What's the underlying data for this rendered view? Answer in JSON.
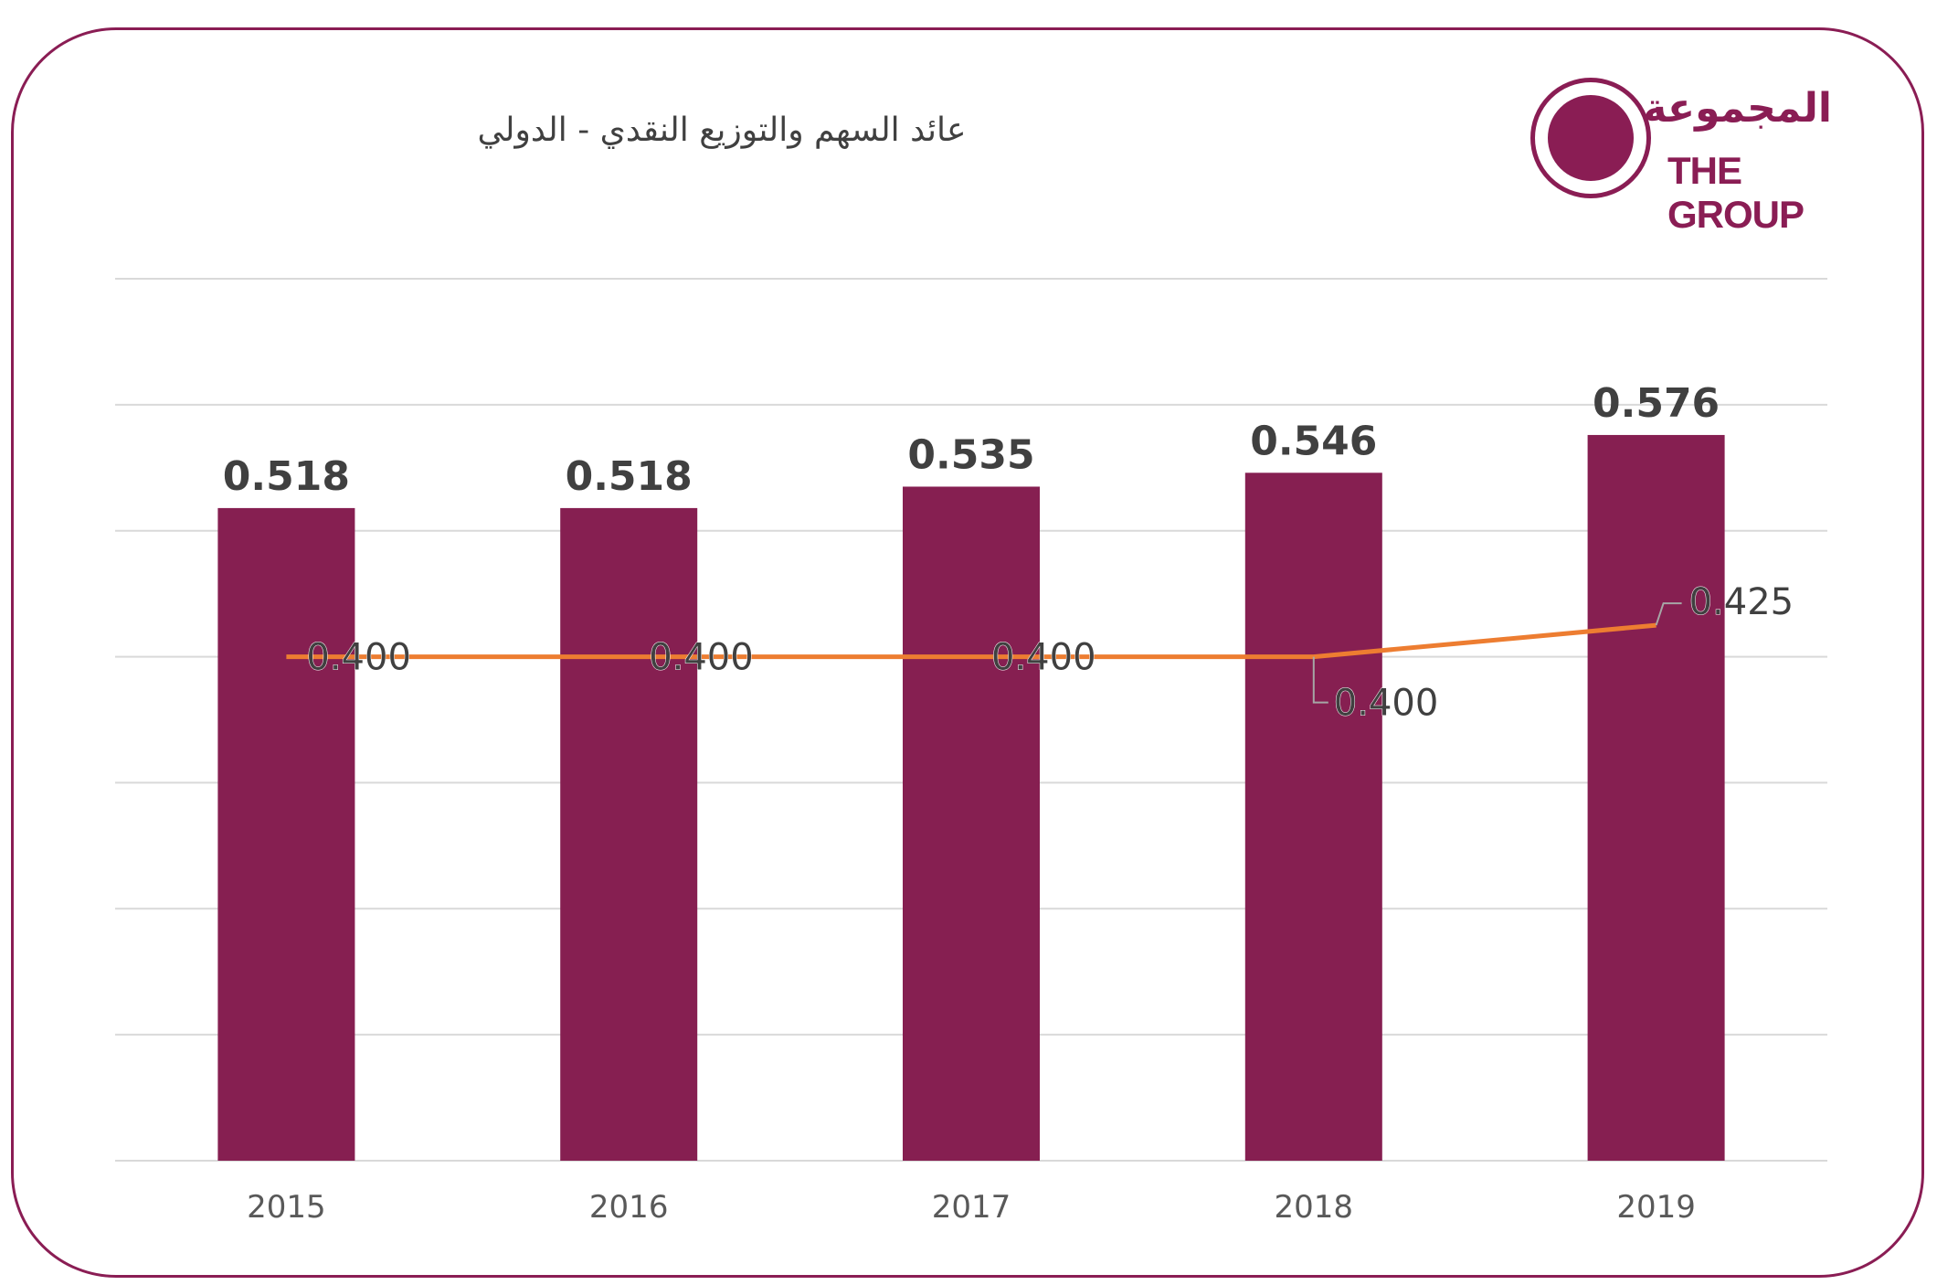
{
  "header": {
    "title": "عائد السهم  والتوزيع النقدي - الدولي"
  },
  "logo": {
    "arabic": "المجموعة",
    "english": "THE GROUP",
    "color": "#8a1d54"
  },
  "chart_data": {
    "type": "bar",
    "categories": [
      "2015",
      "2016",
      "2017",
      "2018",
      "2019"
    ],
    "series": [
      {
        "type": "bar",
        "values": [
          0.518,
          0.518,
          0.535,
          0.546,
          0.576
        ],
        "color": "#861f51",
        "labels": [
          "0.518",
          "0.518",
          "0.535",
          "0.546",
          "0.576"
        ]
      },
      {
        "type": "line",
        "values": [
          0.4,
          0.4,
          0.4,
          0.4,
          0.425
        ],
        "color": "#ed7d31",
        "labels": [
          "0.400",
          "0.400",
          "0.400",
          "0.400",
          "0.425"
        ]
      }
    ],
    "ylim": [
      0,
      0.7
    ],
    "grid": true,
    "legend": "none"
  }
}
